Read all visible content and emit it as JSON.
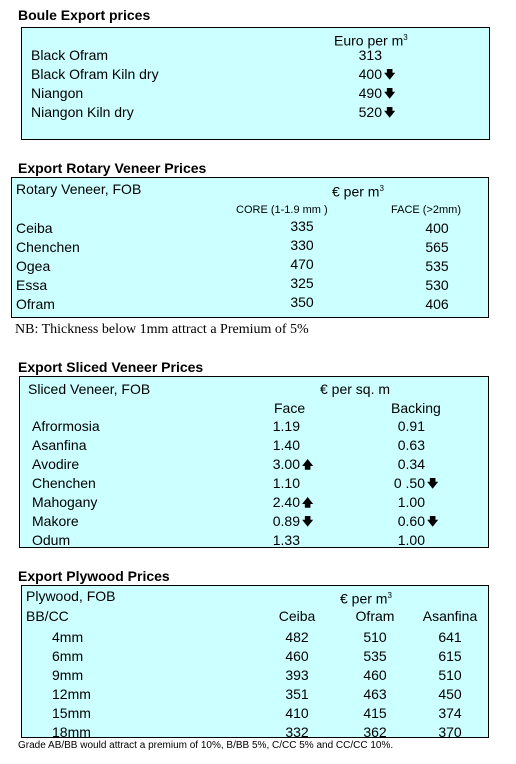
{
  "boule": {
    "title": "Boule Export prices",
    "unit": "Euro per m",
    "unit_sup": "3",
    "rows": [
      {
        "name": "Black Ofram",
        "value": "313",
        "trend": ""
      },
      {
        "name": "Black Ofram  Kiln dry",
        "value": "400",
        "trend": "down"
      },
      {
        "name": "Niangon",
        "value": "490",
        "trend": "down"
      },
      {
        "name": "Niangon Kiln dry",
        "value": "520",
        "trend": "down"
      }
    ]
  },
  "rotary": {
    "title": "Export Rotary Veneer Prices",
    "label": "Rotary Veneer,  FOB",
    "unit": "€  per m",
    "unit_sup": "3",
    "col1": "CORE (1-1.9 mm )",
    "col2": "FACE (>2mm)",
    "rows": [
      {
        "name": "Ceiba",
        "core": "335",
        "face": "400"
      },
      {
        "name": "Chenchen",
        "core": "330",
        "face": "565"
      },
      {
        "name": "Ogea",
        "core": "470",
        "face": "535"
      },
      {
        "name": "Essa",
        "core": "325",
        "face": "530"
      },
      {
        "name": "Ofram",
        "core": "350",
        "face": "406"
      }
    ],
    "note": "NB: Thickness below 1mm attract a Premium of 5%"
  },
  "sliced": {
    "title": "Export Sliced Veneer Prices",
    "label": "Sliced Veneer, FOB",
    "unit": "€ per sq. m",
    "col1": "Face",
    "col2": "Backing",
    "rows": [
      {
        "name": "Afrormosia",
        "face": "1.19",
        "face_trend": "",
        "back": "0.91",
        "back_trend": ""
      },
      {
        "name": "Asanfina",
        "face": "1.40",
        "face_trend": "",
        "back": "0.63",
        "back_trend": ""
      },
      {
        "name": "Avodire",
        "face": "3.00",
        "face_trend": "up",
        "back": "0.34",
        "back_trend": ""
      },
      {
        "name": "Chenchen",
        "face": "1.10",
        "face_trend": "",
        "back": "0 .50",
        "back_trend": "down"
      },
      {
        "name": "Mahogany",
        "face": "2.40",
        "face_trend": "up",
        "back": "1.00",
        "back_trend": ""
      },
      {
        "name": "Makore",
        "face": "0.89",
        "face_trend": "down",
        "back": "0.60",
        "back_trend": "down"
      },
      {
        "name": "Odum",
        "face": "1.33",
        "face_trend": "",
        "back": "1.00",
        "back_trend": ""
      }
    ]
  },
  "plywood": {
    "title": "Export Plywood Prices",
    "label": "Plywood, FOB",
    "unit": "€ per m",
    "unit_sup": "3",
    "grade": "BB/CC",
    "cols": [
      "Ceiba",
      "Ofram",
      "Asanfina"
    ],
    "rows": [
      {
        "size": "4mm",
        "v": [
          "482",
          "510",
          "641"
        ]
      },
      {
        "size": "6mm",
        "v": [
          "460",
          "535",
          "615"
        ]
      },
      {
        "size": "9mm",
        "v": [
          "393",
          "460",
          "510"
        ]
      },
      {
        "size": "12mm",
        "v": [
          "351",
          "463",
          "450"
        ]
      },
      {
        "size": "15mm",
        "v": [
          "410",
          "415",
          "374"
        ]
      },
      {
        "size": "18mm",
        "v": [
          "332",
          "362",
          "370"
        ]
      }
    ],
    "note": "Grade AB/BB would attract a premium of 10%, B/BB 5%, C/CC 5% and CC/CC 10%."
  },
  "arrows": {
    "up": "🡅",
    "down": "🡇"
  }
}
